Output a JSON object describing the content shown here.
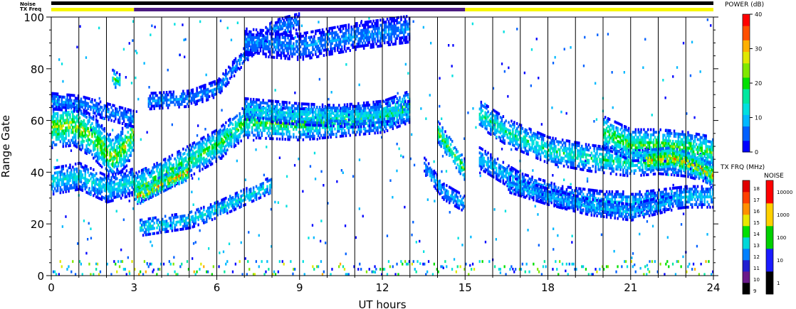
{
  "chart_data": {
    "type": "heatmap",
    "top_labels": {
      "noise": "Noise",
      "txfreq": "TX Freq"
    },
    "status_bars": {
      "noise_color": "#000000",
      "txfreq_segments": [
        {
          "from": 0,
          "to": 3,
          "color": "#f7f700"
        },
        {
          "from": 3,
          "to": 15,
          "color": "#4a1a80"
        },
        {
          "from": 15,
          "to": 24,
          "color": "#f7f700"
        }
      ]
    },
    "xlabel": "UT hours",
    "ylabel": "Range Gate",
    "xlim": [
      0,
      24
    ],
    "ylim": [
      0,
      100
    ],
    "x_ticks": [
      "0",
      "3",
      "6",
      "9",
      "12",
      "15",
      "18",
      "21",
      "24"
    ],
    "x_tick_values": [
      0,
      3,
      6,
      9,
      12,
      15,
      18,
      21,
      24
    ],
    "y_ticks": [
      "0",
      "20",
      "40",
      "60",
      "80",
      "100"
    ],
    "y_tick_values": [
      0,
      20,
      40,
      60,
      80,
      100
    ],
    "hour_lines": [
      1,
      2,
      3,
      4,
      5,
      6,
      7,
      8,
      9,
      10,
      11,
      12,
      13,
      14,
      15,
      16,
      17,
      18,
      19,
      20,
      21,
      22,
      23
    ],
    "bands": [
      {
        "path": [
          [
            0,
            57
          ],
          [
            0.8,
            58
          ],
          [
            1.5,
            53
          ],
          [
            2.2,
            45
          ],
          [
            2.7,
            50
          ],
          [
            3,
            56
          ]
        ],
        "width": 8,
        "peak": 30
      },
      {
        "path": [
          [
            0,
            36
          ],
          [
            1,
            38
          ],
          [
            2,
            33
          ],
          [
            3,
            36
          ]
        ],
        "width": 5,
        "peak": 16
      },
      {
        "path": [
          [
            0,
            67
          ],
          [
            1,
            66
          ],
          [
            2,
            63
          ],
          [
            3,
            60
          ]
        ],
        "width": 3,
        "peak": 10
      },
      {
        "path": [
          [
            2.2,
            76
          ],
          [
            2.5,
            74
          ]
        ],
        "width": 3,
        "peak": 22
      },
      {
        "path": [
          [
            3,
            33
          ],
          [
            4,
            38
          ],
          [
            5,
            44
          ],
          [
            6,
            50
          ],
          [
            7,
            59
          ],
          [
            9,
            58
          ],
          [
            11,
            60
          ],
          [
            12,
            61
          ],
          [
            13,
            65
          ]
        ],
        "width": 6,
        "peak": 25
      },
      {
        "path": [
          [
            3.1,
            30
          ],
          [
            4,
            35
          ],
          [
            5,
            40
          ]
        ],
        "width": 3,
        "peak": 36
      },
      {
        "path": [
          [
            3.2,
            18
          ],
          [
            5,
            21
          ],
          [
            6,
            25
          ],
          [
            7,
            30
          ],
          [
            8,
            35
          ]
        ],
        "width": 3,
        "peak": 16
      },
      {
        "path": [
          [
            3.5,
            67
          ],
          [
            5,
            68
          ],
          [
            6,
            72
          ],
          [
            7,
            85
          ],
          [
            8,
            95
          ],
          [
            9,
            98
          ]
        ],
        "width": 3,
        "peak": 10
      },
      {
        "path": [
          [
            7,
            90
          ],
          [
            9,
            88
          ],
          [
            11,
            92
          ],
          [
            13,
            95
          ]
        ],
        "width": 5,
        "peak": 10
      },
      {
        "path": [
          [
            7,
            64
          ],
          [
            9,
            62
          ],
          [
            11,
            61
          ],
          [
            13,
            63
          ]
        ],
        "width": 4,
        "peak": 16
      },
      {
        "path": [
          [
            14,
            55
          ],
          [
            15,
            40
          ]
        ],
        "width": 4,
        "peak": 26
      },
      {
        "path": [
          [
            13.5,
            42
          ],
          [
            14.2,
            32
          ],
          [
            15,
            27
          ]
        ],
        "width": 3,
        "peak": 12
      },
      {
        "path": [
          [
            15.5,
            62
          ],
          [
            16.5,
            55
          ],
          [
            18,
            48
          ],
          [
            19.5,
            45
          ],
          [
            21,
            43
          ],
          [
            22,
            44
          ],
          [
            23,
            43
          ],
          [
            24,
            40
          ]
        ],
        "width": 5,
        "peak": 20
      },
      {
        "path": [
          [
            15.5,
            45
          ],
          [
            17,
            35
          ],
          [
            18.5,
            30
          ],
          [
            20,
            28
          ],
          [
            21.5,
            28
          ],
          [
            23,
            30
          ],
          [
            24,
            30
          ]
        ],
        "width": 4,
        "peak": 14
      },
      {
        "path": [
          [
            16.5,
            35
          ],
          [
            18,
            30
          ],
          [
            19.5,
            26
          ],
          [
            21,
            24
          ],
          [
            22.5,
            28
          ]
        ],
        "width": 3,
        "peak": 12
      },
      {
        "path": [
          [
            20,
            55
          ],
          [
            21,
            50
          ],
          [
            22,
            50
          ],
          [
            23,
            49
          ],
          [
            24,
            47
          ]
        ],
        "width": 6,
        "peak": 26
      },
      {
        "path": [
          [
            21.5,
            44
          ],
          [
            22.5,
            45
          ],
          [
            23.3,
            42
          ],
          [
            24,
            38
          ]
        ],
        "width": 4,
        "peak": 36
      }
    ]
  },
  "power_scale": {
    "label": "POWER (dB)",
    "min": 0,
    "max": 40,
    "ticks": [
      "0",
      "10",
      "20",
      "30",
      "40"
    ],
    "tick_values": [
      0,
      10,
      20,
      30,
      40
    ],
    "colors": [
      "#0000ff",
      "#0060ff",
      "#00b8ff",
      "#00e0e0",
      "#00e8a0",
      "#00e000",
      "#80e800",
      "#e0e800",
      "#ffb000",
      "#ff5000",
      "#ff0000"
    ]
  },
  "txfreq_scale": {
    "label": "TX FRQ (MHz)",
    "ticks": [
      "9",
      "10",
      "11",
      "12",
      "13",
      "14",
      "15",
      "16",
      "17",
      "18"
    ],
    "colors": [
      "#000000",
      "#6a1a8a",
      "#2020d0",
      "#0080ff",
      "#00d8d8",
      "#00e000",
      "#e8e800",
      "#ff9000",
      "#ff4000",
      "#e00000"
    ]
  },
  "noise_scale": {
    "label": "NOISE",
    "ticks": [
      "1",
      "10",
      "100",
      "1000",
      "10000"
    ],
    "colors": [
      "#000000",
      "#1a1aff",
      "#00d000",
      "#ffd000",
      "#ff0000"
    ]
  }
}
